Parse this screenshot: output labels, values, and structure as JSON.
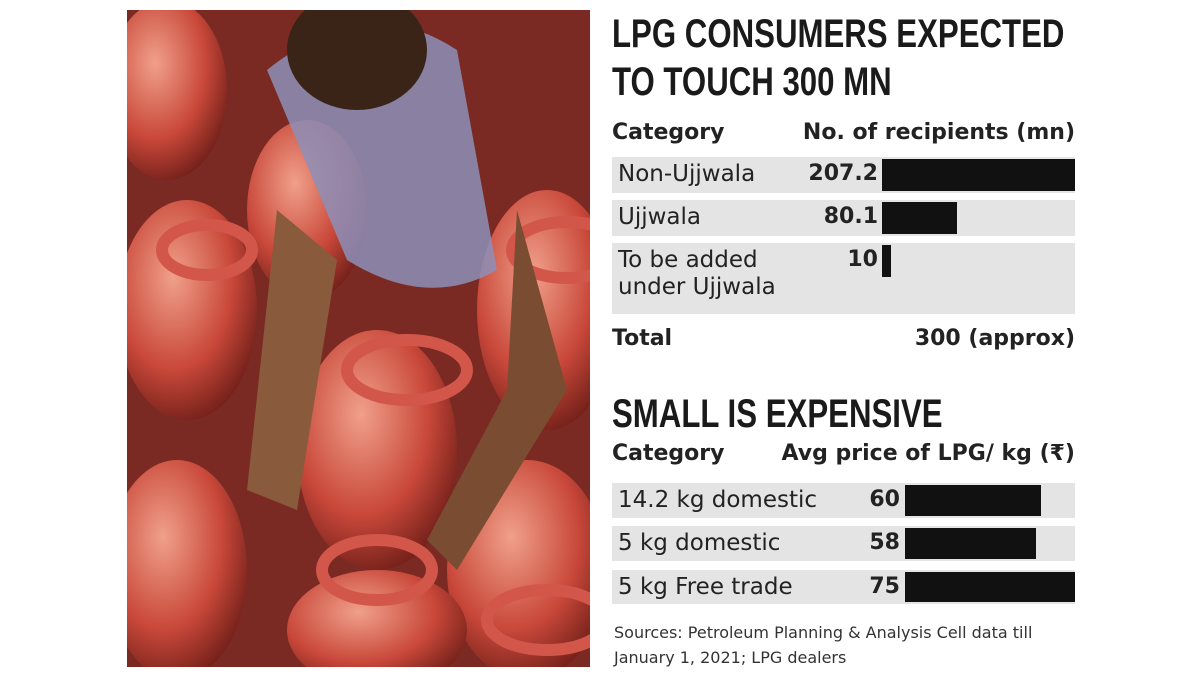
{
  "chart_data": [
    {
      "type": "bar",
      "title": "LPG CONSUMERS EXPECTED TO TOUCH 300 MN",
      "category_header": "Category",
      "value_header": "No. of recipients (mn)",
      "categories": [
        "Non-Ujjwala",
        "Ujjwala",
        "To be added under Ujjwala"
      ],
      "values": [
        207.2,
        80.1,
        10
      ],
      "color": "#111111",
      "total_label": "Total",
      "total_value": "300 (approx)"
    },
    {
      "type": "bar",
      "title": "SMALL IS EXPENSIVE",
      "category_header": "Category",
      "value_header": "Avg price of LPG/ kg (₹)",
      "categories": [
        "14.2 kg domestic",
        "5 kg domestic",
        "5 kg Free trade"
      ],
      "values": [
        60,
        58,
        75
      ],
      "color": "#111111"
    }
  ],
  "sources": "Sources: Petroleum Planning & Analysis Cell data till January 1, 2021; LPG dealers"
}
